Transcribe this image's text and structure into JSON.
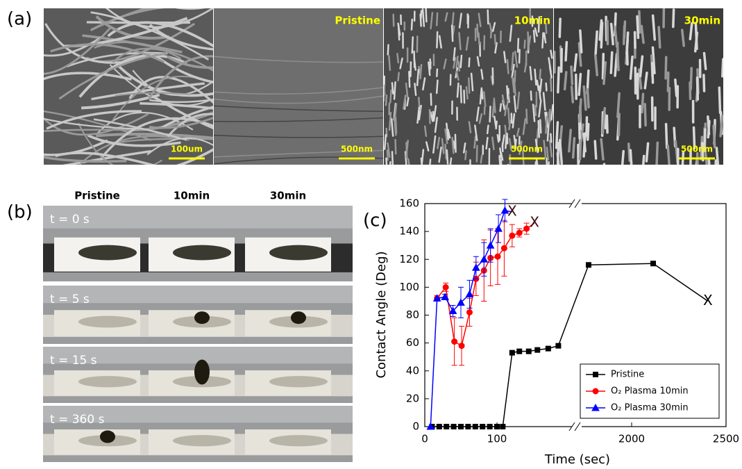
{
  "panel_a": {
    "label": "(a)",
    "images": [
      {
        "scale_bar": "100um"
      },
      {
        "caption": "Pristine",
        "scale_bar": "500nm"
      },
      {
        "caption": "10min",
        "scale_bar": "500nm"
      },
      {
        "caption": "30min",
        "scale_bar": "500nm"
      }
    ]
  },
  "panel_b": {
    "label": "(b)",
    "columns": [
      "Pristine",
      "10min",
      "30min"
    ],
    "rows": [
      "t = 0 s",
      "t = 5 s",
      "t = 15 s",
      "t = 360 s"
    ]
  },
  "chart_data": {
    "type": "line",
    "label": "(c)",
    "x_label": "Time (sec)",
    "y_label": "Contact Angle (Deg)",
    "ylim": [
      0,
      160
    ],
    "yticks": [
      0,
      20,
      40,
      60,
      80,
      100,
      120,
      140,
      160
    ],
    "x_segments": [
      {
        "xlim": [
          0,
          200
        ],
        "xticks": [
          0,
          100
        ]
      },
      {
        "xlim": [
          1750,
          2500
        ],
        "xticks": [
          2000,
          2500
        ]
      }
    ],
    "legend_loc": "lower right",
    "series": [
      {
        "name": "Pristine",
        "color": "#000000",
        "marker": "square",
        "end_label": "X",
        "x": [
          10,
          20,
          30,
          40,
          50,
          60,
          70,
          80,
          90,
          100,
          108,
          121,
          131,
          144,
          156,
          171,
          185,
          1772,
          2114,
          2404
        ],
        "values": [
          0,
          0,
          0,
          0,
          0,
          0,
          0,
          0,
          0,
          0,
          0,
          53,
          54,
          54,
          55,
          56,
          58,
          116,
          117,
          90
        ]
      },
      {
        "name": "O₂ Plasma 10min",
        "color": "#ff0000",
        "marker": "circle",
        "end_label": "X",
        "x": [
          17,
          29,
          41,
          51,
          62,
          71,
          82,
          91,
          101,
          110,
          121,
          131,
          141,
          152
        ],
        "values": [
          92,
          100,
          61,
          58,
          82,
          106,
          112,
          121,
          122,
          128,
          137,
          139,
          142,
          146
        ],
        "errors": [
          2,
          3,
          17,
          14,
          10,
          12,
          22,
          20,
          20,
          20,
          8,
          3,
          4,
          null
        ]
      },
      {
        "name": "O₂ Plasma 30min",
        "color": "#0000ff",
        "marker": "triangle",
        "end_label": "X",
        "x": [
          8,
          17,
          28,
          39,
          50,
          62,
          71,
          82,
          91,
          102,
          111,
          121
        ],
        "values": [
          0,
          92,
          93,
          83,
          89,
          95,
          114,
          120,
          130,
          142,
          155,
          154
        ],
        "errors": [
          null,
          null,
          2,
          4,
          11,
          10,
          8,
          12,
          12,
          10,
          8,
          null
        ]
      }
    ]
  }
}
